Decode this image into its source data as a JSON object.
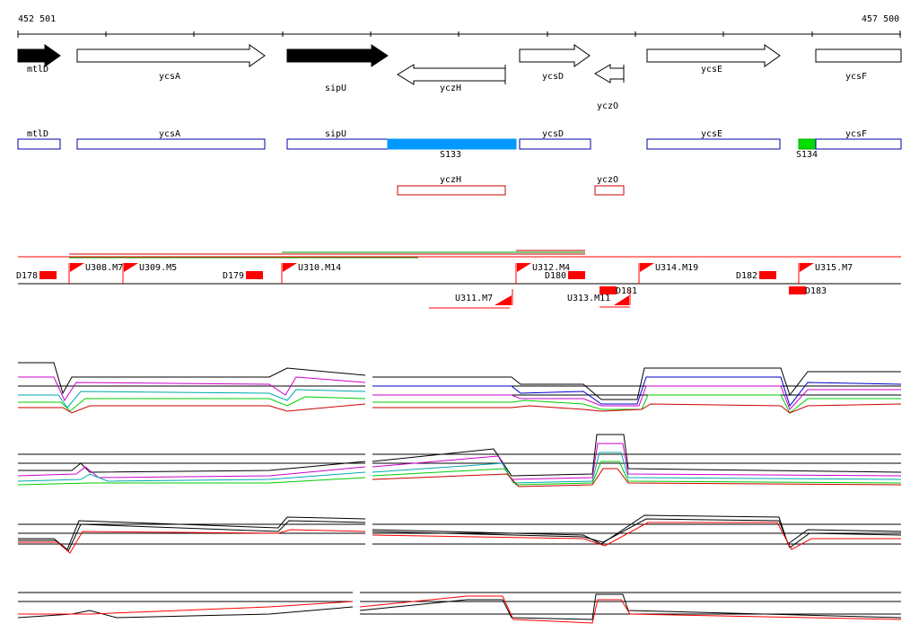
{
  "coords": {
    "start": "452 501",
    "end": "457 500"
  },
  "genes": [
    {
      "name": "mtlD",
      "strand": "+",
      "filled": true
    },
    {
      "name": "ycsA",
      "strand": "+",
      "filled": false
    },
    {
      "name": "sipU",
      "strand": "+",
      "filled": true
    },
    {
      "name": "yczH",
      "strand": "-",
      "filled": false
    },
    {
      "name": "ycsD",
      "strand": "+",
      "filled": false
    },
    {
      "name": "yczO",
      "strand": "-",
      "filled": false
    },
    {
      "name": "ycsE",
      "strand": "+",
      "filled": false
    },
    {
      "name": "ycsF",
      "strand": "+",
      "filled": false
    }
  ],
  "segments_plus": [
    {
      "name": "mtlD"
    },
    {
      "name": "ycsA"
    },
    {
      "name": "sipU"
    },
    {
      "name": "ycsD"
    },
    {
      "name": "ycsE"
    },
    {
      "name": "ycsF"
    }
  ],
  "segments_minus": [
    {
      "name": "yczH"
    },
    {
      "name": "yczO"
    }
  ],
  "regions": [
    {
      "name": "S133",
      "color": "#0099ff"
    },
    {
      "name": "S134",
      "color": "#00dd00"
    }
  ],
  "features": {
    "downshifts": [
      "D178",
      "D179",
      "D180",
      "D181",
      "D182",
      "D183"
    ],
    "upshifts": [
      "U308.M7",
      "U309.M5",
      "U310.M14",
      "U311.M7",
      "U312.M4",
      "U313.M11",
      "U314.M19",
      "U315.M7"
    ]
  },
  "colors": {
    "feature": "#ff0000",
    "segment_plus": "#0000aa",
    "segment_minus": "#cc0000",
    "green": "#009900"
  }
}
